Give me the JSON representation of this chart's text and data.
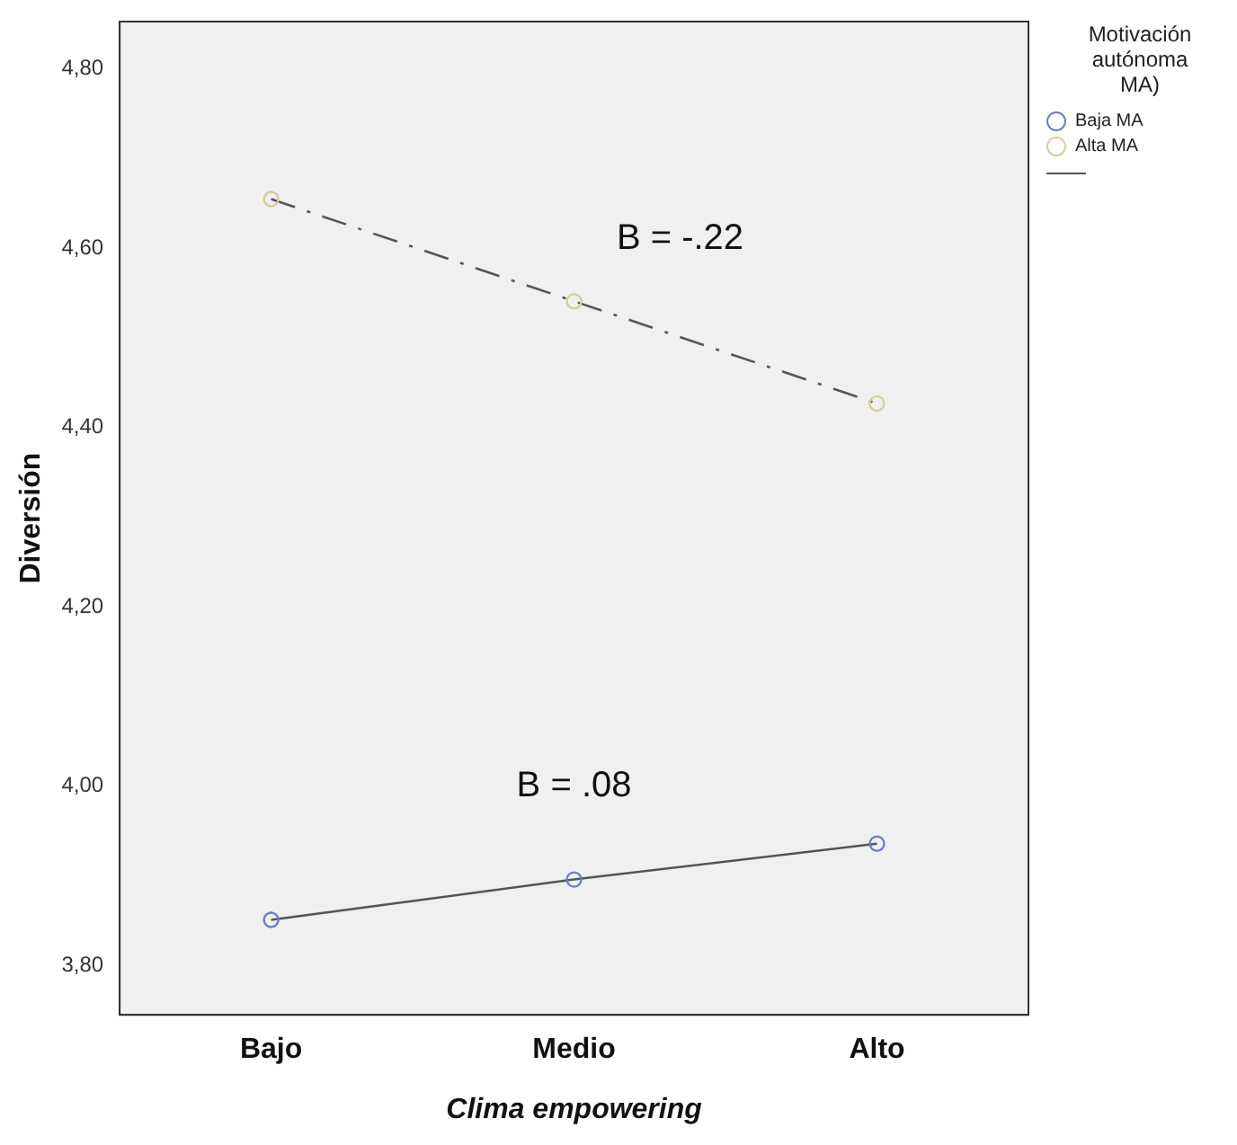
{
  "chart_data": {
    "type": "line",
    "xlabel": "Clima empowering",
    "ylabel": "Diversión",
    "legend_title": "Motivación\nautónoma\nMA)",
    "legend": "top right",
    "marker": "circle",
    "categories": [
      "Bajo",
      "Medio",
      "Alto"
    ],
    "series": [
      {
        "name": "Baja MA",
        "color": "#6a80c8",
        "values": [
          3.851,
          3.896,
          3.936
        ],
        "line_style": "solid"
      },
      {
        "name": "Alta MA",
        "color": "#d6cf9c",
        "values": [
          4.655,
          4.541,
          4.427
        ],
        "line_style": "dashed"
      }
    ],
    "ylim": [
      3.745,
      4.853
    ],
    "yticks": [
      {
        "value": 3.8,
        "label": "3,80"
      },
      {
        "value": 4.0,
        "label": "4,00"
      },
      {
        "value": 4.2,
        "label": "4,20"
      },
      {
        "value": 4.4,
        "label": "4,40"
      },
      {
        "value": 4.6,
        "label": "4,60"
      },
      {
        "value": 4.8,
        "label": "4,80"
      }
    ],
    "grid": false,
    "annotations": [
      "B = -.22",
      "B = .08"
    ]
  }
}
